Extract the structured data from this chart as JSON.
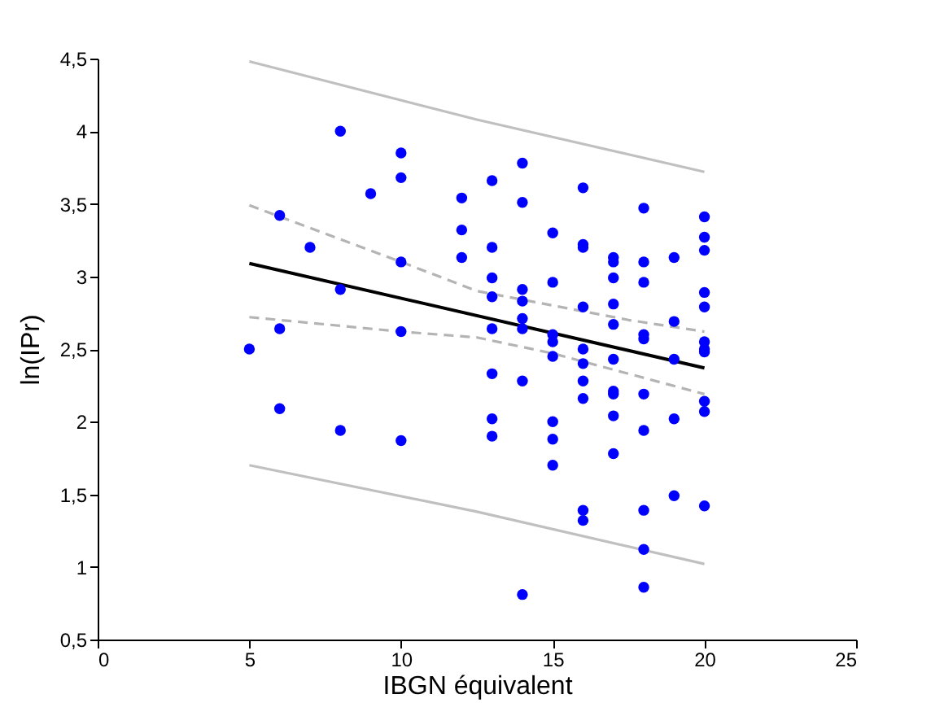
{
  "chart_data": {
    "type": "scatter",
    "xlabel": "IBGN équivalent",
    "ylabel": "ln(IPr)",
    "xlim": [
      0,
      25
    ],
    "xticks": [
      0,
      5,
      10,
      15,
      20,
      25
    ],
    "ylim": [
      0.5,
      4.5
    ],
    "yticks": [
      {
        "value": 0.5,
        "label": "0,5"
      },
      1,
      {
        "value": 1.5,
        "label": "1,5"
      },
      2,
      {
        "value": 2.5,
        "label": "2,5"
      },
      3,
      {
        "value": 3.5,
        "label": "3,5"
      },
      4,
      {
        "value": 4.5,
        "label": "4,5"
      }
    ],
    "grid": false,
    "series": [
      {
        "color": "#0000ff",
        "marker": "circle",
        "x": [
          5,
          6,
          6,
          6,
          7,
          8,
          8,
          8,
          9,
          10,
          10,
          10,
          10,
          10,
          12,
          12,
          12,
          13,
          13,
          13,
          13,
          13,
          13,
          13,
          13,
          14,
          14,
          14,
          14,
          14,
          14,
          14,
          14,
          15,
          15,
          15,
          15,
          15,
          15,
          15,
          15,
          16,
          16,
          16,
          16,
          16,
          16,
          16,
          16,
          16,
          16,
          17,
          17,
          17,
          17,
          17,
          17,
          17,
          17,
          17,
          17,
          18,
          18,
          18,
          18,
          18,
          18,
          18,
          18,
          18,
          18,
          19,
          19,
          19,
          19,
          19,
          20,
          20,
          20,
          20,
          20,
          20,
          20,
          20,
          20,
          20,
          20
        ],
        "values": [
          2.5,
          3.42,
          2.64,
          2.09,
          3.2,
          4.0,
          2.91,
          1.94,
          3.57,
          3.85,
          3.68,
          3.1,
          2.62,
          1.87,
          3.54,
          3.32,
          3.13,
          3.66,
          3.2,
          2.99,
          2.86,
          2.64,
          2.33,
          2.02,
          1.9,
          3.78,
          3.51,
          2.91,
          2.83,
          2.71,
          2.64,
          2.28,
          0.81,
          3.3,
          2.96,
          2.6,
          2.55,
          2.45,
          2.0,
          1.88,
          1.7,
          3.61,
          3.22,
          3.2,
          2.79,
          2.5,
          2.4,
          2.28,
          2.16,
          1.39,
          1.32,
          3.13,
          3.1,
          2.99,
          2.81,
          2.67,
          2.43,
          2.21,
          2.19,
          2.04,
          1.78,
          3.47,
          3.1,
          2.96,
          2.6,
          2.57,
          2.19,
          1.94,
          1.39,
          1.12,
          0.86,
          3.13,
          2.69,
          2.43,
          2.02,
          1.49,
          3.41,
          3.27,
          3.18,
          2.89,
          2.79,
          2.55,
          2.5,
          2.48,
          2.14,
          2.07,
          1.42
        ]
      },
      {
        "type": "line",
        "color": "#c0c0c0",
        "line_style": "solid",
        "marker": "none",
        "x": [
          5,
          12.5,
          20
        ],
        "values": [
          4.48,
          4.08,
          3.72
        ]
      },
      {
        "type": "line",
        "color": "#c0c0c0",
        "line_style": "solid",
        "marker": "none",
        "x": [
          5,
          12.5,
          20
        ],
        "values": [
          1.7,
          1.38,
          1.02
        ]
      },
      {
        "type": "line",
        "color": "#b4b4b4",
        "line_style": "dashed",
        "marker": "none",
        "x": [
          5,
          10,
          12.5,
          15,
          17.5,
          20
        ],
        "values": [
          3.49,
          3.1,
          2.9,
          2.8,
          2.7,
          2.62
        ]
      },
      {
        "type": "line",
        "color": "#b4b4b4",
        "line_style": "dashed",
        "marker": "none",
        "x": [
          5,
          10,
          12.5,
          15,
          17.5,
          20
        ],
        "values": [
          2.72,
          2.62,
          2.58,
          2.47,
          2.33,
          2.19
        ]
      },
      {
        "type": "line",
        "color": "#000000",
        "line_style": "solid",
        "marker": "none",
        "x": [
          5,
          20
        ],
        "values": [
          3.09,
          2.37
        ]
      }
    ]
  }
}
